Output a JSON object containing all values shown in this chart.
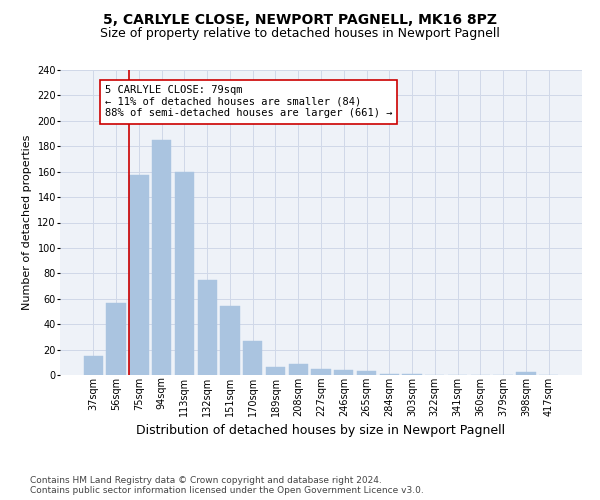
{
  "title": "5, CARLYLE CLOSE, NEWPORT PAGNELL, MK16 8PZ",
  "subtitle": "Size of property relative to detached houses in Newport Pagnell",
  "xlabel": "Distribution of detached houses by size in Newport Pagnell",
  "ylabel": "Number of detached properties",
  "categories": [
    "37sqm",
    "56sqm",
    "75sqm",
    "94sqm",
    "113sqm",
    "132sqm",
    "151sqm",
    "170sqm",
    "189sqm",
    "208sqm",
    "227sqm",
    "246sqm",
    "265sqm",
    "284sqm",
    "303sqm",
    "322sqm",
    "341sqm",
    "360sqm",
    "379sqm",
    "398sqm",
    "417sqm"
  ],
  "values": [
    15,
    57,
    157,
    185,
    160,
    75,
    54,
    27,
    6,
    9,
    5,
    4,
    3,
    1,
    1,
    0,
    0,
    0,
    0,
    2,
    0
  ],
  "bar_color": "#aac4e0",
  "bar_edge_color": "#aac4e0",
  "vline_color": "#cc0000",
  "vline_x_index": 2,
  "annotation_text": "5 CARLYLE CLOSE: 79sqm\n← 11% of detached houses are smaller (84)\n88% of semi-detached houses are larger (661) →",
  "annotation_box_color": "#ffffff",
  "annotation_box_edge": "#cc0000",
  "ylim": [
    0,
    240
  ],
  "yticks": [
    0,
    20,
    40,
    60,
    80,
    100,
    120,
    140,
    160,
    180,
    200,
    220,
    240
  ],
  "grid_color": "#d0d8e8",
  "bg_color": "#eef2f8",
  "footer": "Contains HM Land Registry data © Crown copyright and database right 2024.\nContains public sector information licensed under the Open Government Licence v3.0.",
  "title_fontsize": 10,
  "subtitle_fontsize": 9,
  "xlabel_fontsize": 9,
  "ylabel_fontsize": 8,
  "annotation_fontsize": 7.5,
  "footer_fontsize": 6.5,
  "tick_fontsize": 7
}
